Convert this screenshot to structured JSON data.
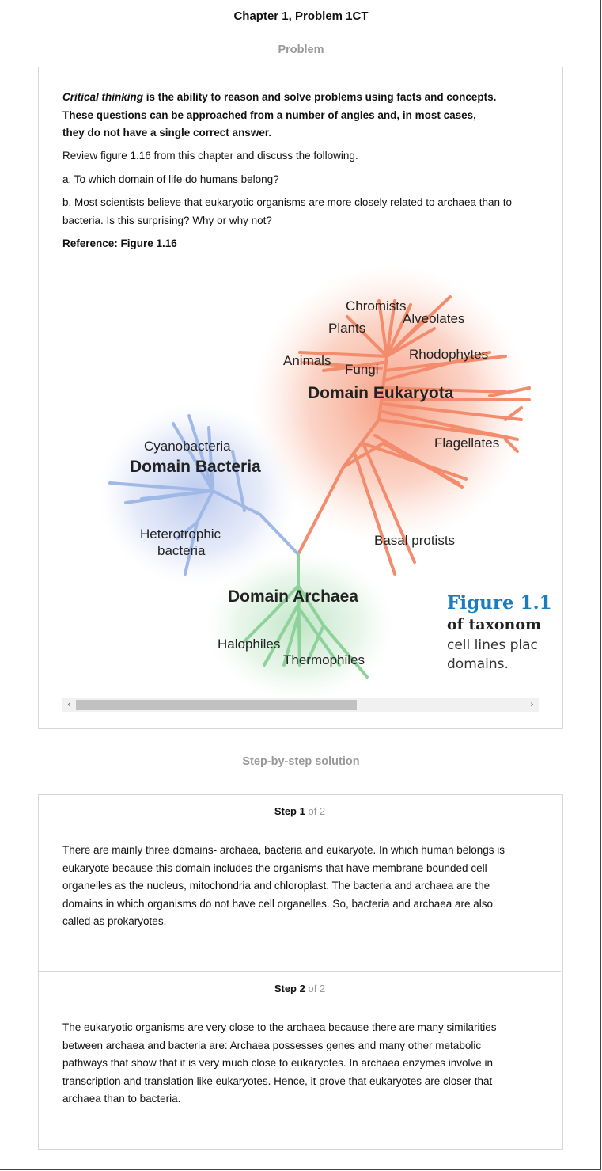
{
  "header": {
    "title": "Chapter 1, Problem 1CT"
  },
  "problem": {
    "heading": "Problem",
    "critical_term": "Critical thinking",
    "critical_rest_1": " is the ability to reason and solve problems using facts and concepts.",
    "critical_line_2": "These questions can be approached from a number of angles and, in most cases,",
    "critical_line_3": "they do not have a single correct answer.",
    "instruction": "Review figure 1.16 from this chapter and discuss the following.",
    "question_a": "a. To which domain of life do humans belong?",
    "question_b_1": "b. Most scientists believe that eukaryotic organisms are more closely related to archaea than to",
    "question_b_2": "bacteria. Is this surprising? Why or why not?",
    "reference": "Reference: Figure 1.16"
  },
  "figure": {
    "labels": {
      "chromists": "Chromists",
      "alveolates": "Alveolates",
      "plants": "Plants",
      "rhodophytes": "Rhodophytes",
      "animals": "Animals",
      "fungi": "Fungi",
      "eukaryota": "Domain Eukaryota",
      "flagellates": "Flagellates",
      "cyanobacteria": "Cyanobacteria",
      "bacteria": "Domain Bacteria",
      "hetero_1": "Heterotrophic",
      "hetero_2": "bacteria",
      "basal": "Basal protists",
      "archaea": "Domain Archaea",
      "halophiles": "Halophiles",
      "thermophiles": "Thermophiles"
    },
    "caption": {
      "number": "Figure 1.1",
      "line1": "of taxonom",
      "line2": "cell lines plac",
      "line3": "domains."
    },
    "colors": {
      "eukaryota": "#f08a6a",
      "bacteria": "#9fb8e6",
      "archaea": "#8fd19a",
      "caption_blue": "#1a7bbf"
    }
  },
  "scrollbar": {
    "left_arrow": "‹",
    "right_arrow": "›"
  },
  "solution": {
    "heading": "Step-by-step solution",
    "steps": [
      {
        "label": "Step 1",
        "of": "of 2",
        "lines": [
          "There are mainly three domains- archaea, bacteria and eukaryote. In which human belongs is",
          "eukaryote because this domain includes the organisms that have membrane bounded cell",
          "organelles as the nucleus, mitochondria and chloroplast. The bacteria and archaea are the",
          "domains in which organisms do not have cell organelles. So, bacteria and archaea are also",
          "called as prokaryotes."
        ]
      },
      {
        "label": "Step 2",
        "of": "of 2",
        "lines": [
          "The eukaryotic organisms are very close to the archaea because there are many similarities",
          "between archaea and bacteria are: Archaea possesses genes and many other metabolic",
          "pathways that show that it is very much close to eukaryotes. In archaea enzymes involve in",
          "transcription and translation like eukaryotes. Hence, it prove that eukaryotes are closer that",
          "archaea than to bacteria."
        ]
      }
    ]
  }
}
